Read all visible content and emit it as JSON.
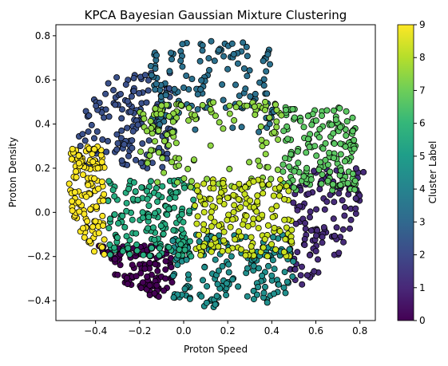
{
  "chart_data": {
    "type": "scatter",
    "title": "KPCA Bayesian Gaussian Mixture Clustering",
    "xlabel": "Proton Speed",
    "ylabel": "Proton Density",
    "xlim": [
      -0.58,
      0.87
    ],
    "ylim": [
      -0.49,
      0.85
    ],
    "xticks": [
      -0.4,
      -0.2,
      0.0,
      0.2,
      0.4,
      0.6,
      0.8
    ],
    "yticks": [
      -0.4,
      -0.2,
      0.0,
      0.2,
      0.4,
      0.6,
      0.8
    ],
    "xtick_labels": [
      "−0.4",
      "−0.2",
      "0.0",
      "0.2",
      "0.4",
      "0.6",
      "0.8"
    ],
    "ytick_labels": [
      "−0.4",
      "−0.2",
      "0.0",
      "0.2",
      "0.4",
      "0.6",
      "0.8"
    ],
    "grid": false,
    "colormap": "viridis",
    "marker_edge_color": "#000000",
    "colorbar": {
      "label": "Cluster Label",
      "range": [
        0,
        9
      ],
      "ticks": [
        0,
        1,
        2,
        3,
        4,
        5,
        6,
        7,
        8,
        9
      ],
      "tick_labels": [
        "0",
        "1",
        "2",
        "3",
        "4",
        "5",
        "6",
        "7",
        "8",
        "9"
      ]
    },
    "clusters": [
      {
        "label": 0,
        "color": "#440154",
        "region": "lower-left",
        "x_range": [
          -0.4,
          -0.05
        ],
        "y_range": [
          -0.43,
          -0.15
        ]
      },
      {
        "label": 1,
        "color": "#472c7a",
        "region": "right-lower",
        "x_range": [
          0.48,
          0.82
        ],
        "y_range": [
          -0.33,
          0.2
        ]
      },
      {
        "label": 2,
        "color": "#3b518b",
        "region": "upper-left",
        "x_range": [
          -0.48,
          -0.05
        ],
        "y_range": [
          0.2,
          0.65
        ]
      },
      {
        "label": 3,
        "color": "#2c718e",
        "region": "top-center",
        "x_range": [
          -0.15,
          0.42
        ],
        "y_range": [
          0.35,
          0.78
        ]
      },
      {
        "label": 4,
        "color": "#21908d",
        "region": "bottom-center",
        "x_range": [
          -0.05,
          0.5
        ],
        "y_range": [
          -0.43,
          -0.1
        ]
      },
      {
        "label": 5,
        "color": "#27ad81",
        "region": "center-left",
        "x_range": [
          -0.35,
          0.05
        ],
        "y_range": [
          -0.2,
          0.15
        ]
      },
      {
        "label": 6,
        "color": "#5cc863",
        "region": "right-upper",
        "x_range": [
          0.45,
          0.78
        ],
        "y_range": [
          0.1,
          0.48
        ]
      },
      {
        "label": 7,
        "color": "#8fd744",
        "region": "center",
        "x_range": [
          -0.2,
          0.45
        ],
        "y_range": [
          0.1,
          0.5
        ]
      },
      {
        "label": 8,
        "color": "#c8e020",
        "region": "center-lower",
        "x_range": [
          0.05,
          0.5
        ],
        "y_range": [
          -0.2,
          0.15
        ]
      },
      {
        "label": 9,
        "color": "#fde725",
        "region": "left-edge",
        "x_range": [
          -0.52,
          -0.36
        ],
        "y_range": [
          -0.22,
          0.3
        ]
      }
    ]
  }
}
